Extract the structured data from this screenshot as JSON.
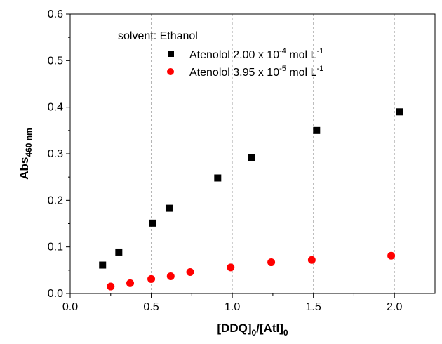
{
  "chart_data": {
    "type": "scatter",
    "x_range": [
      0.0,
      2.25
    ],
    "y_range": [
      0.0,
      0.6
    ],
    "x_ticks": [
      "0.0",
      "0.5",
      "1.0",
      "1.5",
      "2.0"
    ],
    "y_ticks": [
      "0.0",
      "0.1",
      "0.2",
      "0.3",
      "0.4",
      "0.5",
      "0.6"
    ],
    "x_tick_values": [
      0.0,
      0.5,
      1.0,
      1.5,
      2.0
    ],
    "y_tick_values": [
      0.0,
      0.1,
      0.2,
      0.3,
      0.4,
      0.5,
      0.6
    ],
    "x_gridlines": [
      0.5,
      1.0,
      1.5,
      2.0
    ],
    "grid": "vertical dashed",
    "xlabel": {
      "main": "[DDQ]",
      "sub1": "0",
      "mid": "/[Atl]",
      "sub2": "0"
    },
    "ylabel": {
      "main": "Abs",
      "sub": "460 nm"
    },
    "legend": {
      "placement": "top-left",
      "title": "solvent: Ethanol",
      "entries": [
        {
          "prefix": "Atenolol 2.00 x 10",
          "exp": "-4",
          "unit": " mol L",
          "unit_exp": "-1"
        },
        {
          "prefix": "Atenolol 3.95 x 10",
          "exp": "-5",
          "unit": " mol L",
          "unit_exp": "-1"
        }
      ]
    },
    "series": [
      {
        "marker": "square",
        "color": "#000000",
        "x": [
          0.2,
          0.3,
          0.51,
          0.61,
          0.91,
          1.12,
          1.52,
          2.03
        ],
        "y": [
          0.061,
          0.089,
          0.151,
          0.183,
          0.248,
          0.291,
          0.35,
          0.39
        ]
      },
      {
        "marker": "circle",
        "color": "#ff0000",
        "x": [
          0.25,
          0.37,
          0.5,
          0.62,
          0.74,
          0.99,
          1.24,
          1.49,
          1.98
        ],
        "y": [
          0.015,
          0.022,
          0.031,
          0.037,
          0.046,
          0.056,
          0.067,
          0.072,
          0.081
        ]
      }
    ]
  }
}
